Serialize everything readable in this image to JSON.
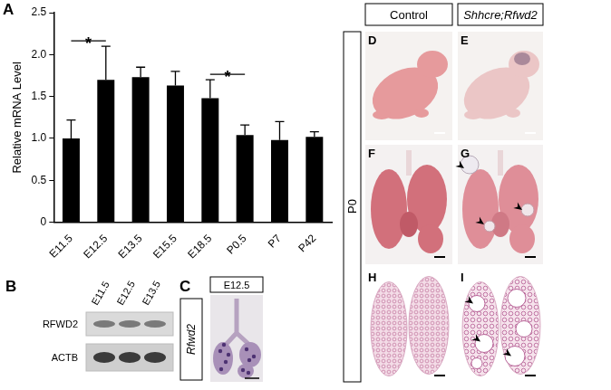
{
  "chart_data": {
    "type": "bar",
    "panel": "A",
    "categories": [
      "E11.5",
      "E12.5",
      "E13.5",
      "E15.5",
      "E18.5",
      "P0.5",
      "P7",
      "P42"
    ],
    "values": [
      1.0,
      1.7,
      1.73,
      1.63,
      1.48,
      1.04,
      0.98,
      1.02
    ],
    "errors": [
      0.22,
      0.4,
      0.12,
      0.17,
      0.22,
      0.12,
      0.22,
      0.06
    ],
    "color": "#000000",
    "ylabel": "Relative mRNA Level",
    "ylim": [
      0,
      2.5
    ],
    "yticks": [
      0,
      0.5,
      {
        "value": 1,
        "label": "1.0"
      },
      1.5,
      {
        "value": 2,
        "label": "2.0"
      },
      2.5
    ],
    "grid": false,
    "annotations": [
      {
        "text": "*",
        "between": [
          "E11.5",
          "E12.5"
        ]
      },
      {
        "text": "*",
        "between": [
          "E18.5",
          "P0.5"
        ]
      }
    ]
  },
  "western_blot": {
    "panel": "B",
    "lanes": [
      "E11.5",
      "E12.5",
      "E13.5"
    ],
    "rows": [
      "RFWD2",
      "ACTB"
    ]
  },
  "in_situ": {
    "panel": "C",
    "stage": "E12.5",
    "probe": "Rfwd2"
  },
  "phenotype": {
    "stage": "P0",
    "columns": [
      "Control",
      "Shhcre;Rfwd2"
    ],
    "panels": [
      [
        "D",
        "E"
      ],
      [
        "F",
        "G"
      ],
      [
        "H",
        "I"
      ]
    ]
  }
}
